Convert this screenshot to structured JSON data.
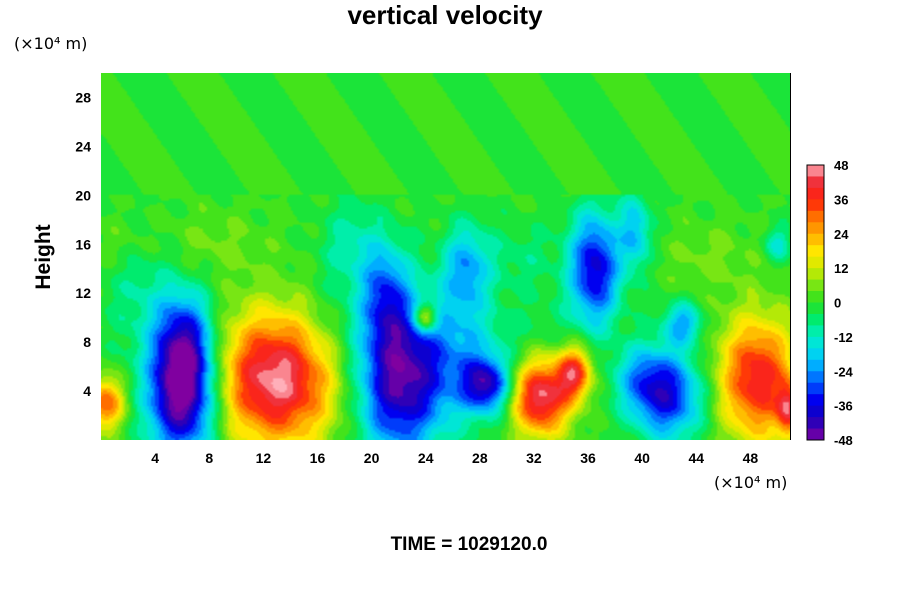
{
  "chart_data": {
    "type": "heatmap",
    "title": "vertical velocity",
    "ylabel": "Height",
    "y_unit": "(×10⁴ m)",
    "x_unit": "(×10⁴ m)",
    "footer": "TIME = 1029120.0",
    "xlim": [
      0,
      51
    ],
    "ylim": [
      0,
      30
    ],
    "x_ticks": [
      4,
      8,
      12,
      16,
      20,
      24,
      28,
      32,
      36,
      40,
      44,
      48
    ],
    "y_ticks": [
      4,
      8,
      12,
      16,
      20,
      24,
      28
    ],
    "x_tick_labels": [
      "4",
      "8",
      "12",
      "16",
      "20",
      "24",
      "28",
      "32",
      "36",
      "40",
      "44",
      "48"
    ],
    "y_tick_labels": [
      "4",
      "8",
      "12",
      "16",
      "20",
      "24",
      "28"
    ],
    "colorbar": {
      "min": -48,
      "max": 48,
      "step": 4,
      "ticks": [
        48,
        36,
        24,
        12,
        0,
        -12,
        -24,
        -36,
        -48
      ],
      "tick_labels": [
        "48",
        "36",
        "24",
        "12",
        "0",
        "-12",
        "-24",
        "-36",
        "-48"
      ],
      "placement": "right"
    },
    "background_value": 0,
    "cells": [
      {
        "x": 6,
        "y": 3.5,
        "value": -48,
        "sx": 1.8,
        "sy": 3.5
      },
      {
        "x": 6.2,
        "y": 8,
        "value": -30,
        "sx": 1.5,
        "sy": 3.0
      },
      {
        "x": 13,
        "y": 5,
        "value": 48,
        "sx": 3.2,
        "sy": 3.8
      },
      {
        "x": 22,
        "y": 5,
        "value": -44,
        "sx": 2.2,
        "sy": 4.5
      },
      {
        "x": 21,
        "y": 12,
        "value": -22,
        "sx": 1.2,
        "sy": 3.0
      },
      {
        "x": 24,
        "y": 10,
        "value": 30,
        "sx": 0.6,
        "sy": 0.8
      },
      {
        "x": 27,
        "y": 14,
        "value": -22,
        "sx": 1.2,
        "sy": 2.5
      },
      {
        "x": 28.5,
        "y": 4.5,
        "value": -34,
        "sx": 1.2,
        "sy": 1.5
      },
      {
        "x": 26.5,
        "y": 6.5,
        "value": -18,
        "sx": 2.5,
        "sy": 3.5
      },
      {
        "x": 32.5,
        "y": 3.5,
        "value": 46,
        "sx": 1.5,
        "sy": 2.2
      },
      {
        "x": 35,
        "y": 5.5,
        "value": 36,
        "sx": 0.9,
        "sy": 1.5
      },
      {
        "x": 36.5,
        "y": 14,
        "value": -38,
        "sx": 1.3,
        "sy": 3.2
      },
      {
        "x": 39.5,
        "y": 17,
        "value": -20,
        "sx": 0.8,
        "sy": 2.2
      },
      {
        "x": 42,
        "y": 3.5,
        "value": -32,
        "sx": 1.8,
        "sy": 2.5
      },
      {
        "x": 40,
        "y": 5,
        "value": -18,
        "sx": 1.5,
        "sy": 2.0
      },
      {
        "x": 43,
        "y": 9.5,
        "value": -22,
        "sx": 1.0,
        "sy": 1.2
      },
      {
        "x": 48.5,
        "y": 5,
        "value": 40,
        "sx": 2.0,
        "sy": 3.5
      },
      {
        "x": 0.3,
        "y": 3,
        "value": 32,
        "sx": 1.0,
        "sy": 1.5
      },
      {
        "x": 50.8,
        "y": 2.5,
        "value": 30,
        "sx": 0.6,
        "sy": 1.5
      },
      {
        "x": 3,
        "y": 12,
        "value": -8,
        "sx": 2.0,
        "sy": 3.5
      },
      {
        "x": 17,
        "y": 9,
        "value": -6,
        "sx": 2.0,
        "sy": 3.5
      },
      {
        "x": 18.5,
        "y": 16,
        "value": -10,
        "sx": 1.5,
        "sy": 2.5
      },
      {
        "x": 31,
        "y": 15,
        "value": -6,
        "sx": 2.0,
        "sy": 2.0
      },
      {
        "x": 8,
        "y": 16,
        "value": 5,
        "sx": 3.0,
        "sy": 2.0
      },
      {
        "x": 45,
        "y": 15,
        "value": 5,
        "sx": 2.5,
        "sy": 2.0
      },
      {
        "x": 1.5,
        "y": 16,
        "value": 4,
        "sx": 1.5,
        "sy": 1.5
      },
      {
        "x": 50,
        "y": 16,
        "value": -14,
        "sx": 0.7,
        "sy": 1.0
      },
      {
        "x": 33,
        "y": 9,
        "value": -4,
        "sx": 2.0,
        "sy": 2.0
      }
    ]
  }
}
